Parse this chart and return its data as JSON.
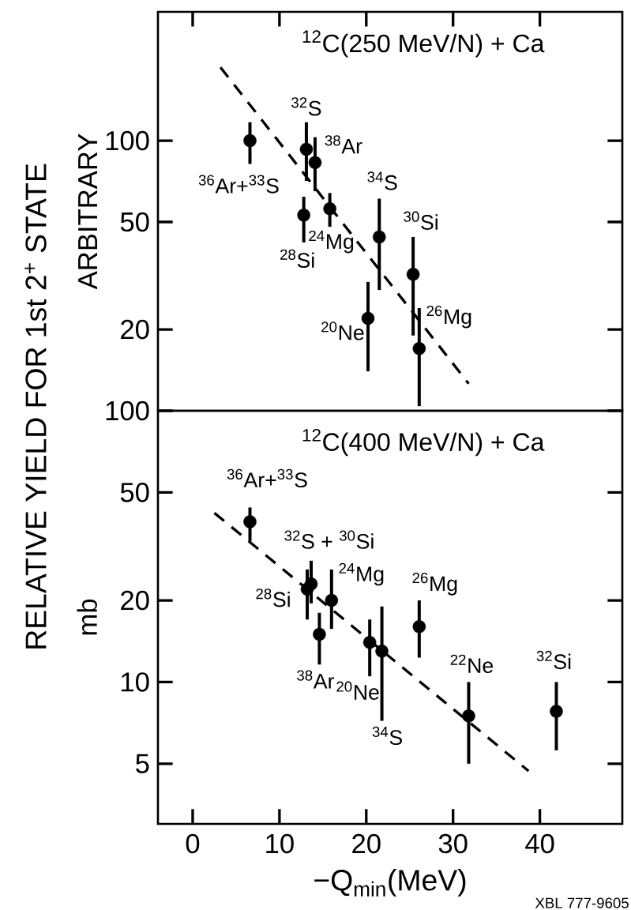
{
  "chart_data": [
    {
      "type": "scatter",
      "title": "$^{12}$C(250 MeV/N) + Ca",
      "ylabel": "ARBITRARY",
      "log": "y",
      "tick_labels": "y",
      "xlim": [
        -4,
        49.5
      ],
      "xticks": [
        0,
        10,
        20,
        30,
        40
      ],
      "ylim": [
        10,
        300
      ],
      "yticks": [
        20,
        50,
        100
      ],
      "series": [
        {
          "color": "#000000",
          "marker": "circle",
          "x": [
            6.6,
            13.1,
            14.1,
            15.8,
            12.8,
            21.5,
            25.4,
            20.2,
            26.1
          ],
          "values": [
            100,
            93,
            83,
            56,
            53,
            44,
            32,
            22,
            17
          ],
          "errors": [
            [
              82,
              117
            ],
            [
              71,
              117
            ],
            [
              65,
              103
            ],
            [
              48,
              64
            ],
            [
              42,
              62
            ],
            [
              28,
              61
            ],
            [
              19,
              44
            ],
            [
              14,
              30
            ],
            [
              10.4,
              24
            ]
          ]
        },
        {
          "type": "line",
          "color": "#000000",
          "line_style": "dashed",
          "marker": "none",
          "x": [
            3.2,
            31.8
          ],
          "values": [
            187,
            12.6
          ]
        }
      ],
      "annotations": [
        "RELATIVE  YIELD  FOR  1st  2$^{+}$  STATE",
        {
          "text": "$^{36}$Ar+$^{33}$S",
          "x": 6.6,
          "y": 100
        },
        {
          "text": "$^{32}$S",
          "x": 13.1,
          "y": 93
        },
        {
          "text": "$^{38}$Ar",
          "x": 14.1,
          "y": 83
        },
        {
          "text": "$^{24}$Mg",
          "x": 15.8,
          "y": 56
        },
        {
          "text": "$^{28}$Si",
          "x": 12.8,
          "y": 53
        },
        {
          "text": "$^{34}$S",
          "x": 21.5,
          "y": 44
        },
        {
          "text": "$^{30}$Si",
          "x": 25.4,
          "y": 32
        },
        {
          "text": "$^{20}$Ne",
          "x": 20.2,
          "y": 22
        },
        {
          "text": "$^{26}$Mg",
          "x": 26.1,
          "y": 17
        }
      ]
    },
    {
      "type": "scatter",
      "title": "$^{12}$C(400 MeV/N) + Ca",
      "ylabel": "mb",
      "xlabel": "−Q$_{min}$(MeV)",
      "log": "y",
      "xlim": [
        -4,
        49.5
      ],
      "xticks": [
        0,
        10,
        20,
        30,
        40
      ],
      "ylim": [
        3,
        100
      ],
      "yticks": [
        5,
        10,
        20,
        50,
        100
      ],
      "series": [
        {
          "color": "#000000",
          "marker": "circle",
          "x": [
            6.6,
            13.65,
            13.2,
            14.6,
            16.0,
            20.4,
            21.8,
            26.1,
            31.8,
            41.9
          ],
          "values": [
            39,
            23,
            22,
            15,
            20,
            14,
            13,
            16,
            7.5,
            7.8
          ],
          "errors": [
            [
              33,
              44
            ],
            [
              19.5,
              28
            ],
            [
              17,
              26
            ],
            [
              11.6,
              18
            ],
            [
              15.7,
              26
            ],
            [
              10.5,
              17
            ],
            [
              7.2,
              19
            ],
            [
              12.3,
              20
            ],
            [
              5,
              10
            ],
            [
              5.6,
              10
            ]
          ]
        },
        {
          "type": "line",
          "color": "#000000",
          "line_style": "dashed",
          "marker": "none",
          "x": [
            2.5,
            38.7
          ],
          "values": [
            42,
            4.7
          ]
        }
      ],
      "annotations": [
        {
          "text": "$^{36}$Ar+$^{33}$S",
          "x": 6.6,
          "y": 39
        },
        {
          "text": "$^{32}$S + $^{30}$Si",
          "x": 13.65,
          "y": 23
        },
        {
          "text": "$^{28}$Si",
          "x": 13.2,
          "y": 22
        },
        {
          "text": "$^{24}$Mg",
          "x": 16.0,
          "y": 20
        },
        {
          "text": "$^{26}$Mg",
          "x": 26.1,
          "y": 16
        },
        {
          "text": "$^{38}$Ar",
          "x": 14.6,
          "y": 15
        },
        {
          "text": "$^{20}$Ne",
          "x": 20.4,
          "y": 14
        },
        {
          "text": "$^{34}$S",
          "x": 21.8,
          "y": 7.2
        },
        {
          "text": "$^{22}$Ne",
          "x": 31.8,
          "y": 7.5
        },
        {
          "text": "$^{32}$Si",
          "x": 41.9,
          "y": 7.8
        },
        "XBL 777-9605"
      ]
    }
  ]
}
